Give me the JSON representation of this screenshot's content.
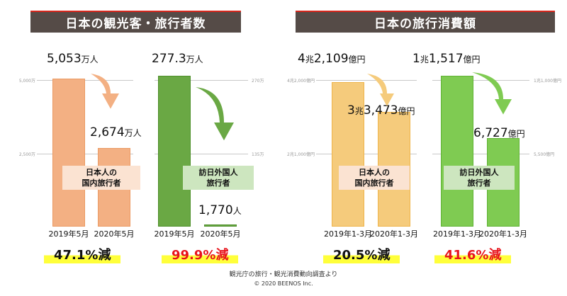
{
  "colors": {
    "orange": "#f3b083",
    "orange_edge": "#eb9a63",
    "darkgreen": "#6aa844",
    "gold": "#f5cb7c",
    "gold_edge": "#eeb44a",
    "lightgreen": "#7fcb52",
    "red": "#e8131b",
    "title_bg": "#554b47"
  },
  "chart_data": [
    {
      "type": "bar",
      "title": "日本の観光客・旅行者数",
      "series": [
        {
          "name": "日本人の国内旅行者",
          "categories": [
            "2019年5月",
            "2020年5月"
          ],
          "values": [
            5053,
            2674
          ],
          "unit": "万人",
          "labels": [
            "5,053",
            "2,674"
          ],
          "axis": {
            "ticks": [
              "5,000万",
              "2,500万"
            ],
            "tick_values": [
              5000,
              2500
            ],
            "max": 5000
          },
          "box": [
            "日本人の",
            "国内旅行者"
          ],
          "change": "47.1%減"
        },
        {
          "name": "訪日外国人旅行者",
          "categories": [
            "2019年5月",
            "2020年5月"
          ],
          "values": [
            277.3,
            0.177
          ],
          "unit_labels": [
            "万人",
            "人"
          ],
          "labels": [
            "277.3",
            "1,770"
          ],
          "axis": {
            "ticks": [
              "270万",
              "135万"
            ],
            "tick_values": [
              270,
              135
            ],
            "max": 270
          },
          "box": [
            "訪日外国人",
            "旅行者"
          ],
          "change": "99.9%減"
        }
      ]
    },
    {
      "type": "bar",
      "title": "日本の旅行消費額",
      "series": [
        {
          "name": "日本人の国内旅行者",
          "categories": [
            "2019年1-3月",
            "2020年1-3月"
          ],
          "values": [
            42109,
            33473
          ],
          "unit": "億円",
          "labels": [
            [
              "4",
              "兆",
              "2,109"
            ],
            [
              "3",
              "兆",
              "3,473"
            ]
          ],
          "axis": {
            "ticks": [
              "4兆2,000億円",
              "2兆1,000億円"
            ],
            "tick_values": [
              42000,
              21000
            ],
            "max": 42000
          },
          "box": [
            "日本人の",
            "国内旅行者"
          ],
          "change": "20.5%減"
        },
        {
          "name": "訪日外国人旅行者",
          "categories": [
            "2019年1-3月",
            "2020年1-3月"
          ],
          "values": [
            11517,
            6727
          ],
          "unit": "億円",
          "labels": [
            [
              "1",
              "兆",
              "1,517"
            ],
            [
              "",
              "",
              "6,727"
            ]
          ],
          "axis": {
            "ticks": [
              "1兆1,000億円",
              "5,500億円"
            ],
            "tick_values": [
              11000,
              5500
            ],
            "max": 11000
          },
          "box": [
            "訪日外国人",
            "旅行者"
          ],
          "change": "41.6%減"
        }
      ]
    }
  ],
  "footer": {
    "source": "観光庁の旅行・観光消費動向調査より",
    "copyright": "© 2020 BEENOS Inc."
  }
}
